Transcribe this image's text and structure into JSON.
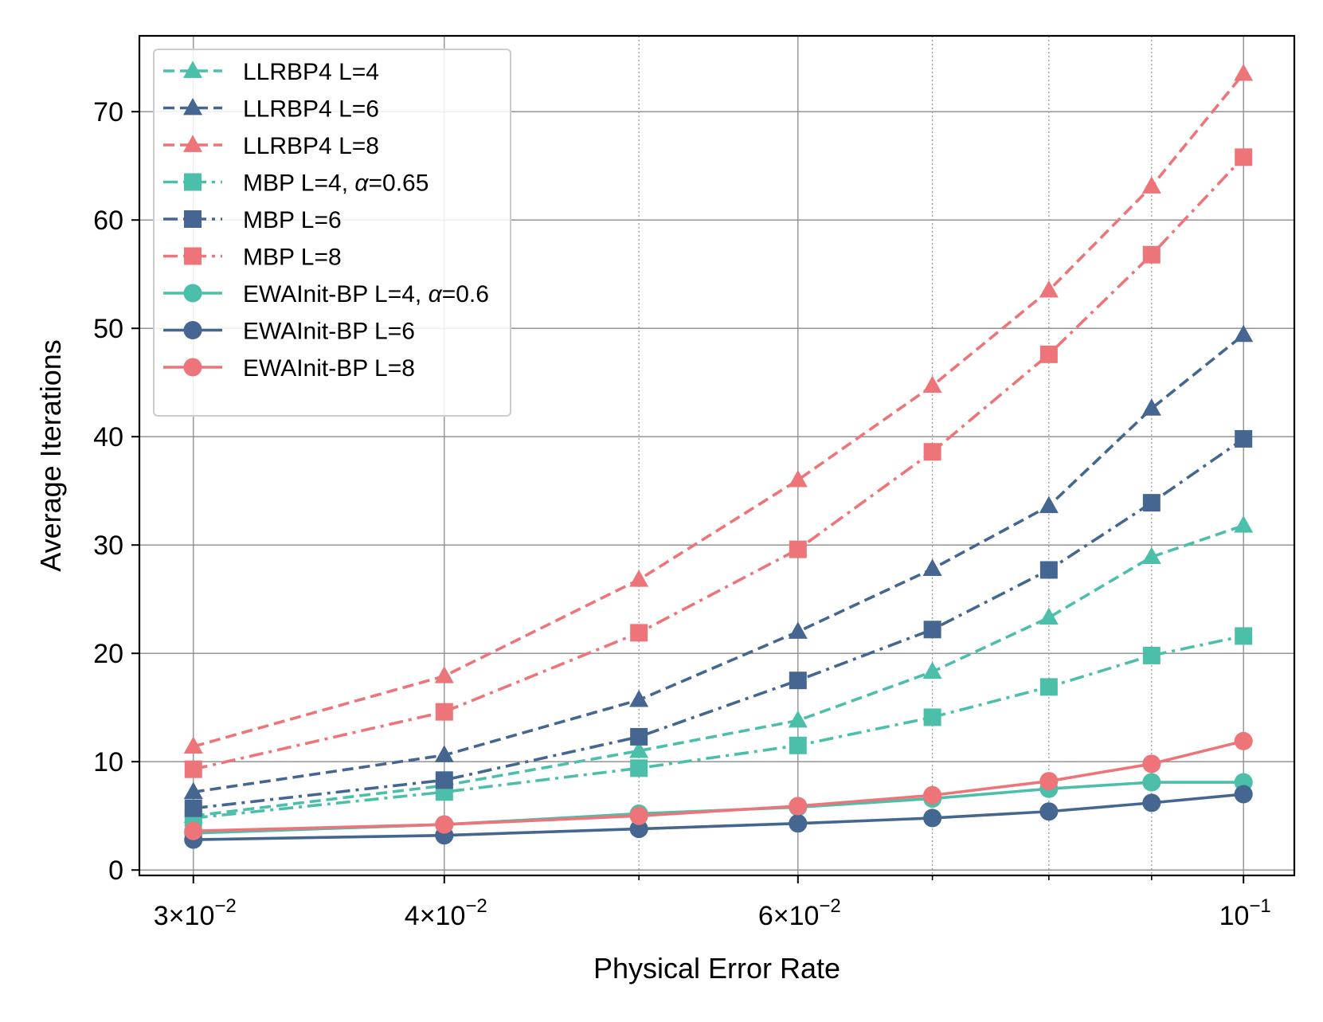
{
  "chart_data": {
    "type": "line",
    "title": "",
    "xlabel": "Physical Error Rate",
    "ylabel": "Average Iterations",
    "xscale": "log",
    "xlim": [
      0.0282,
      0.106
    ],
    "ylim": [
      -0.5,
      77
    ],
    "x": [
      0.03,
      0.04,
      0.05,
      0.06,
      0.07,
      0.08,
      0.09,
      0.1
    ],
    "x_major_ticks": [
      {
        "value": 0.03,
        "base": "3×10",
        "exp": "−2"
      },
      {
        "value": 0.04,
        "base": "4×10",
        "exp": "−2"
      },
      {
        "value": 0.06,
        "base": "6×10",
        "exp": "−2"
      },
      {
        "value": 0.1,
        "base": "10",
        "exp": "−1"
      }
    ],
    "x_minor_gridlines": [
      0.05,
      0.07,
      0.08,
      0.09
    ],
    "y_ticks": [
      {
        "value": 0,
        "label": "0"
      },
      {
        "value": 10,
        "label": "10"
      },
      {
        "value": 20,
        "label": "20"
      },
      {
        "value": 30,
        "label": "30"
      },
      {
        "value": 40,
        "label": "40"
      },
      {
        "value": 50,
        "label": "50"
      },
      {
        "value": 60,
        "label": "60"
      },
      {
        "value": 70,
        "label": "70"
      }
    ],
    "grid": true,
    "legend_position": "top-left",
    "series": [
      {
        "name": "LLRBP4 L=4",
        "color": "#4bbfaa",
        "marker": "triangle",
        "linestyle": "dashed",
        "values": [
          5.0,
          7.8,
          11.0,
          13.8,
          18.3,
          23.3,
          28.9,
          31.8
        ]
      },
      {
        "name": "LLRBP4 L=6",
        "color": "#456690",
        "marker": "triangle",
        "linestyle": "dashed",
        "values": [
          7.2,
          10.6,
          15.7,
          22.0,
          27.8,
          33.6,
          42.6,
          49.4
        ]
      },
      {
        "name": "LLRBP4 L=8",
        "color": "#ed7479",
        "marker": "triangle",
        "linestyle": "dashed",
        "values": [
          11.4,
          17.9,
          26.8,
          36.0,
          44.7,
          53.5,
          63.1,
          73.5
        ]
      },
      {
        "name": "MBP L=4, ",
        "greek": "α",
        "suffix": "=0.65",
        "color": "#4bbfaa",
        "marker": "square",
        "linestyle": "dashdot",
        "values": [
          4.8,
          7.2,
          9.4,
          11.5,
          14.1,
          16.9,
          19.8,
          21.6
        ]
      },
      {
        "name": "MBP L=6",
        "color": "#456690",
        "marker": "square",
        "linestyle": "dashdot",
        "values": [
          5.7,
          8.3,
          12.3,
          17.5,
          22.2,
          27.7,
          33.9,
          39.8
        ]
      },
      {
        "name": "MBP L=8",
        "color": "#ed7479",
        "marker": "square",
        "linestyle": "dashdot",
        "values": [
          9.3,
          14.6,
          21.9,
          29.6,
          38.6,
          47.6,
          56.8,
          65.8
        ]
      },
      {
        "name": "EWAInit-BP L=4, ",
        "greek": "α",
        "suffix": "=0.6",
        "color": "#4bbfaa",
        "marker": "circle",
        "linestyle": "solid",
        "values": [
          3.4,
          4.2,
          5.2,
          5.8,
          6.6,
          7.5,
          8.1,
          8.1
        ]
      },
      {
        "name": "EWAInit-BP L=6",
        "color": "#456690",
        "marker": "circle",
        "linestyle": "solid",
        "values": [
          2.8,
          3.2,
          3.8,
          4.3,
          4.8,
          5.4,
          6.2,
          7.0
        ]
      },
      {
        "name": "EWAInit-BP L=8",
        "color": "#ed7479",
        "marker": "circle",
        "linestyle": "solid",
        "values": [
          3.6,
          4.2,
          5.0,
          5.9,
          6.9,
          8.2,
          9.8,
          11.9
        ]
      }
    ]
  }
}
